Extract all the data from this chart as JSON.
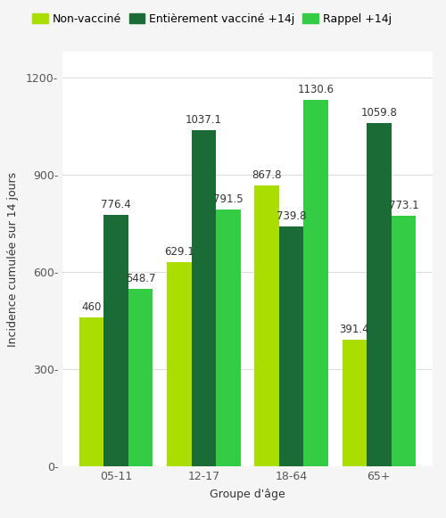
{
  "categories": [
    "05-11",
    "12-17",
    "18-64",
    "65+"
  ],
  "series": [
    {
      "name": "Non-vacciné",
      "color": "#aadd00",
      "values": [
        460,
        629.1,
        867.8,
        391.4
      ],
      "labels": [
        "460",
        "629.1",
        "867.8",
        "391.4"
      ]
    },
    {
      "name": "Entièrement vacciné +14j",
      "color": "#1a6b35",
      "values": [
        776.4,
        1037.1,
        739.8,
        1059.8
      ],
      "labels": [
        "776.4",
        "1037.1",
        "739.8",
        "1059.8"
      ]
    },
    {
      "name": "Rappel +14j",
      "color": "#33cc44",
      "values": [
        548.7,
        791.5,
        1130.6,
        773.1
      ],
      "labels": [
        "548.7",
        "791.5",
        "1130.6",
        "773.1"
      ]
    }
  ],
  "ylabel": "Incidence cumulée sur 14 jours",
  "xlabel": "Groupe d'âge",
  "ylim": [
    0,
    1280
  ],
  "yticks": [
    0,
    300,
    600,
    900,
    1200
  ],
  "plot_bg": "#ffffff",
  "fig_bg": "#f5f5f5",
  "grid_color": "#dddddd",
  "bar_width": 0.28,
  "label_fontsize": 9,
  "tick_fontsize": 9,
  "annotation_fontsize": 8.5,
  "legend_fontsize": 9
}
